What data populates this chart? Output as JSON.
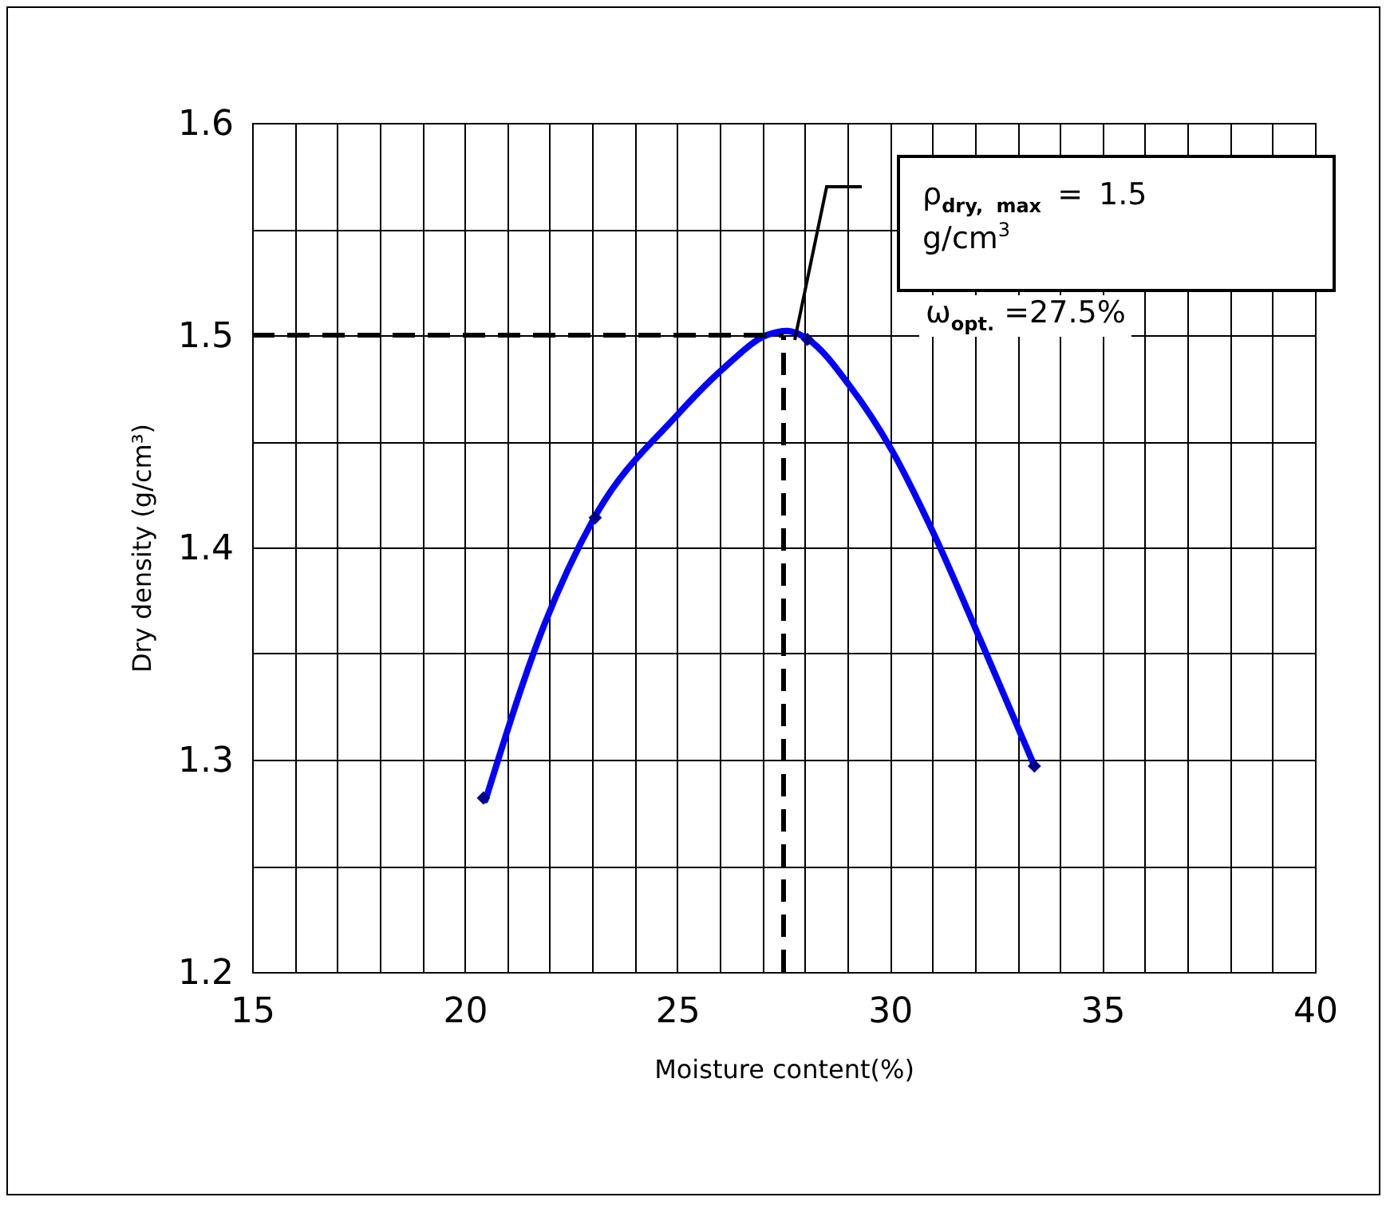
{
  "chart_data": {
    "type": "line",
    "xlabel": "Moisture content(%)",
    "ylabel": "Dry density (g/cm³)",
    "xlim": [
      15,
      40
    ],
    "ylim": [
      1.2,
      1.6
    ],
    "xticks": [
      15,
      {
        "value": 16,
        "label": null
      },
      {
        "value": 17,
        "label": null
      },
      {
        "value": 18,
        "label": null
      },
      {
        "value": 19,
        "label": null
      },
      20,
      {
        "value": 21,
        "label": null
      },
      {
        "value": 22,
        "label": null
      },
      {
        "value": 23,
        "label": null
      },
      {
        "value": 24,
        "label": null
      },
      25,
      {
        "value": 26,
        "label": null
      },
      {
        "value": 27,
        "label": null
      },
      {
        "value": 28,
        "label": null
      },
      {
        "value": 29,
        "label": null
      },
      30,
      {
        "value": 31,
        "label": null
      },
      {
        "value": 32,
        "label": null
      },
      {
        "value": 33,
        "label": null
      },
      {
        "value": 34,
        "label": null
      },
      35,
      {
        "value": 36,
        "label": null
      },
      {
        "value": 37,
        "label": null
      },
      {
        "value": 38,
        "label": null
      },
      {
        "value": 39,
        "label": null
      },
      40
    ],
    "yticks": [
      {
        "value": 1.2,
        "label": "1.2"
      },
      {
        "value": 1.25,
        "label": null
      },
      {
        "value": 1.3,
        "label": "1.3"
      },
      {
        "value": 1.35,
        "label": null
      },
      {
        "value": 1.4,
        "label": "1.4"
      },
      {
        "value": 1.45,
        "label": null
      },
      {
        "value": 1.5,
        "label": "1.5"
      },
      {
        "value": 1.55,
        "label": null
      },
      {
        "value": 1.6,
        "label": "1.6"
      }
    ],
    "grid": true,
    "series": [
      {
        "type": "line",
        "color": "#0000ff",
        "marker": "none",
        "line_style": "solid",
        "x": [
          20.49,
          21.88,
          23.02,
          24.98,
          26.12,
          27.1,
          27.59,
          28.08,
          29.06,
          30.04,
          31.02,
          32.16,
          33.38
        ],
        "values": [
          1.281,
          1.364,
          1.413,
          1.462,
          1.485,
          1.5,
          1.502,
          1.498,
          1.476,
          1.446,
          1.407,
          1.355,
          1.298
        ]
      },
      {
        "type": "scatter",
        "color": "#00008b",
        "marker": "diamond",
        "x": [
          20.44,
          23.07,
          28.06,
          33.4
        ],
        "values": [
          1.282,
          1.414,
          1.498,
          1.297
        ]
      }
    ],
    "ref_lines": [
      {
        "axis": "y",
        "value": 1.5,
        "color": "#000000",
        "line_style": "dashed"
      },
      {
        "axis": "x",
        "value": 27.5,
        "color": "#000000",
        "line_style": "dashed"
      }
    ],
    "annotations": [
      "ρ$_{dry, max}$ = 1.5 g/cm$^{3}$",
      "ω$_{opt.}$ =27.5%"
    ]
  }
}
